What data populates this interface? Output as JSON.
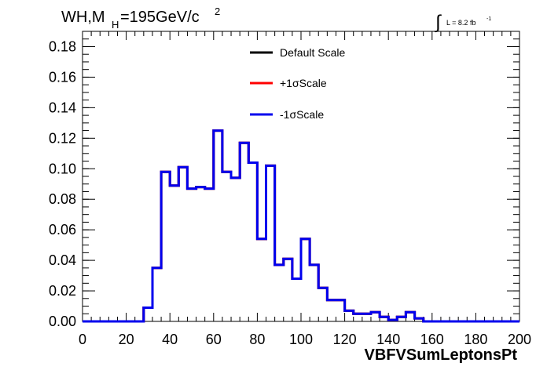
{
  "chart_data": {
    "type": "histogram",
    "title_main": "WH,M",
    "title_sub": "H",
    "title_value": "=195GeV/c",
    "title_sup": "2",
    "lumi_label": "L = 8.2 fb",
    "lumi_sup": "-1",
    "xlabel": "VBFVSumLeptonsPt",
    "xlim": [
      0,
      200
    ],
    "ylim": [
      0,
      0.19
    ],
    "x_ticks": [
      "0",
      "20",
      "40",
      "60",
      "80",
      "100",
      "120",
      "140",
      "160",
      "180",
      "200"
    ],
    "y_ticks": [
      "0.00",
      "0.02",
      "0.04",
      "0.06",
      "0.08",
      "0.10",
      "0.12",
      "0.14",
      "0.16",
      "0.18"
    ],
    "bin_width": 4,
    "series": [
      {
        "name": "Default Scale",
        "color": "#000000",
        "values": [
          0,
          0,
          0,
          0,
          0,
          0,
          0,
          0.009,
          0.035,
          0.098,
          0.089,
          0.101,
          0.087,
          0.088,
          0.087,
          0.125,
          0.098,
          0.094,
          0.117,
          0.104,
          0.054,
          0.102,
          0.037,
          0.041,
          0.028,
          0.054,
          0.037,
          0.022,
          0.014,
          0.014,
          0.007,
          0.005,
          0.005,
          0.006,
          0.003,
          0.001,
          0.003,
          0.006,
          0.002,
          0,
          0,
          0,
          0,
          0,
          0,
          0,
          0,
          0,
          0,
          0
        ]
      },
      {
        "name": "+1σScale",
        "color": "#ff0000",
        "values": [
          0,
          0,
          0,
          0,
          0,
          0,
          0,
          0.009,
          0.035,
          0.098,
          0.089,
          0.101,
          0.087,
          0.088,
          0.087,
          0.125,
          0.098,
          0.094,
          0.117,
          0.104,
          0.054,
          0.102,
          0.037,
          0.041,
          0.028,
          0.054,
          0.037,
          0.022,
          0.014,
          0.014,
          0.007,
          0.005,
          0.005,
          0.006,
          0.003,
          0.001,
          0.003,
          0.006,
          0.002,
          0,
          0,
          0,
          0,
          0,
          0,
          0,
          0,
          0,
          0,
          0
        ]
      },
      {
        "name": "-1σScale",
        "color": "#0000ee",
        "values": [
          0,
          0,
          0,
          0,
          0,
          0,
          0,
          0.009,
          0.035,
          0.098,
          0.089,
          0.101,
          0.087,
          0.088,
          0.087,
          0.125,
          0.098,
          0.094,
          0.117,
          0.104,
          0.054,
          0.102,
          0.037,
          0.041,
          0.028,
          0.054,
          0.037,
          0.022,
          0.014,
          0.014,
          0.007,
          0.005,
          0.005,
          0.006,
          0.003,
          0.001,
          0.003,
          0.006,
          0.002,
          0,
          0,
          0,
          0,
          0,
          0,
          0,
          0,
          0,
          0,
          0
        ]
      }
    ],
    "legend_position": "top-center",
    "grid": false
  }
}
